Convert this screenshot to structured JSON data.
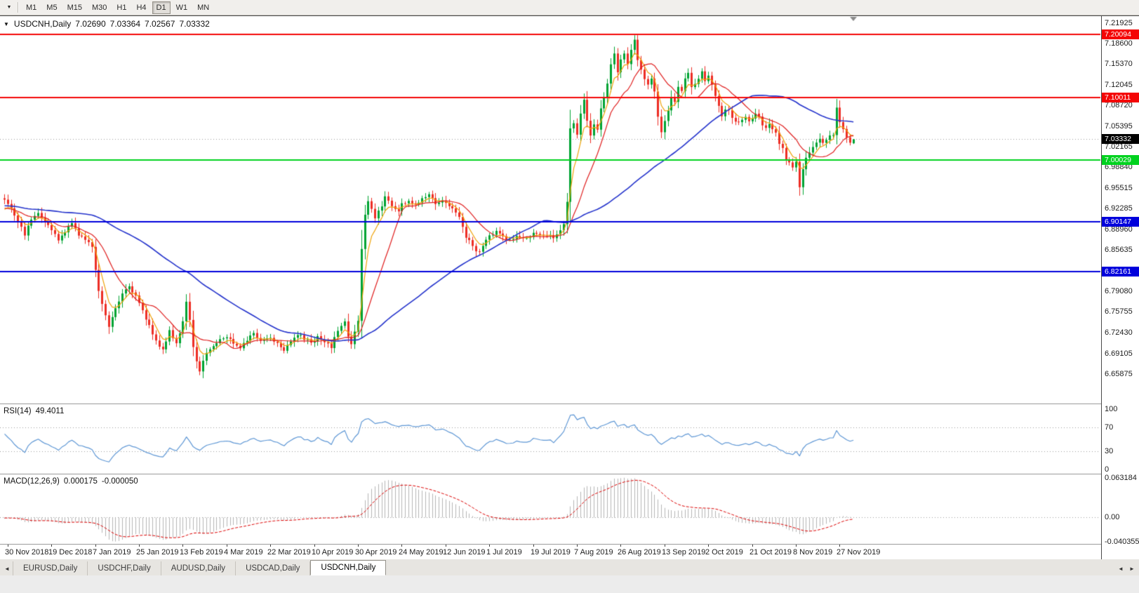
{
  "toolbar": {
    "timeframes": [
      "M1",
      "M5",
      "M15",
      "M30",
      "H1",
      "H4",
      "D1",
      "W1",
      "MN"
    ],
    "active": "D1"
  },
  "icons": {
    "dropdown": "▼",
    "title_triangle": "▼",
    "tab_left_arrow": "◄",
    "tab_right_arrow": "►"
  },
  "chart": {
    "symbol_period": "USDCNH,Daily",
    "ohlc": {
      "open": "7.02690",
      "high": "7.03364",
      "low": "7.02567",
      "close": "7.03332"
    },
    "price_axis": [
      "7.21925",
      "7.18600",
      "7.15370",
      "7.12045",
      "7.08720",
      "7.05395",
      "7.02165",
      "6.98840",
      "6.95515",
      "6.92285",
      "6.88960",
      "6.85635",
      "6.79080",
      "6.75755",
      "6.72430",
      "6.69105",
      "6.65875"
    ],
    "hlines": [
      {
        "price": 7.20094,
        "label": "7.20094",
        "color": "#f40606"
      },
      {
        "price": 7.10011,
        "label": "7.10011",
        "color": "#f40606"
      },
      {
        "price": 7.00029,
        "label": "7.00029",
        "color": "#00d21f"
      },
      {
        "price": 6.90147,
        "label": "6.90147",
        "color": "#0000dc"
      },
      {
        "price": 6.82161,
        "label": "6.82161",
        "color": "#0000dc"
      }
    ],
    "current_price": {
      "value": 7.03332,
      "label": "7.03332",
      "tag_color": "#000000"
    },
    "date_axis": [
      "30 Nov 2018",
      "19 Dec 2018",
      "7 Jan 2019",
      "25 Jan 2019",
      "13 Feb 2019",
      "4 Mar 2019",
      "22 Mar 2019",
      "10 Apr 2019",
      "30 Apr 2019",
      "24 May 2019",
      "12 Jun 2019",
      "1 Jul 2019",
      "19 Jul 2019",
      "7 Aug 2019",
      "26 Aug 2019",
      "13 Sep 2019",
      "2 Oct 2019",
      "21 Oct 2019",
      "8 Nov 2019",
      "27 Nov 2019"
    ]
  },
  "rsi": {
    "label": "RSI(14)",
    "value": "49.4011",
    "axis": [
      "100",
      "70",
      "30",
      "0"
    ],
    "levels": [
      70,
      30
    ]
  },
  "macd": {
    "label": "MACD(12,26,9)",
    "value_main": "0.000175",
    "value_signal": "-0.000050",
    "axis": [
      "0.063184",
      "0.00",
      "-0.040355"
    ]
  },
  "tabs": {
    "items": [
      "EURUSD,Daily",
      "USDCHF,Daily",
      "AUDUSD,Daily",
      "USDCAD,Daily",
      "USDCNH,Daily"
    ],
    "active": "USDCNH,Daily"
  },
  "colors": {
    "bull": "#00a332",
    "bear": "#ed2d24",
    "ma_fast": "#e01f1f",
    "ma_mid": "#f0a30a",
    "ma_slow": "#2433cc",
    "rsi_line": "#5e97d5",
    "level_dotted": "#9c9c9c",
    "macd_hist": "#b5b5b5",
    "macd_signal": "#dd0000",
    "current_line": "#9a9a9a",
    "shift_marker": "#8a8a8a"
  },
  "chart_data": {
    "type": "candlestick",
    "symbol": "USDCNH",
    "timeframe": "Daily",
    "bars": 253,
    "warmup_bars": 60,
    "bars_per_label": 13,
    "first_label_bar": 1,
    "price_range": [
      6.61,
      7.23
    ],
    "macd_range": [
      -0.0447,
      0.0687
    ],
    "last_close": 7.03332,
    "last_bar": [
      7.0269,
      7.03364,
      7.02567,
      7.03332
    ],
    "indicators": {
      "ma_periods": [
        13,
        5,
        55
      ],
      "rsi_period": 14,
      "macd_params": [
        12,
        26,
        9
      ]
    },
    "price_anchors": [
      [
        0,
        6.938
      ],
      [
        2,
        6.925
      ],
      [
        4,
        6.902
      ],
      [
        6,
        6.882
      ],
      [
        8,
        6.905
      ],
      [
        10,
        6.918
      ],
      [
        12,
        6.902
      ],
      [
        14,
        6.888
      ],
      [
        16,
        6.872
      ],
      [
        18,
        6.886
      ],
      [
        20,
        6.898
      ],
      [
        22,
        6.882
      ],
      [
        24,
        6.872
      ],
      [
        26,
        6.862
      ],
      [
        28,
        6.792
      ],
      [
        30,
        6.752
      ],
      [
        31,
        6.735
      ],
      [
        33,
        6.765
      ],
      [
        35,
        6.788
      ],
      [
        37,
        6.8
      ],
      [
        39,
        6.782
      ],
      [
        41,
        6.758
      ],
      [
        43,
        6.736
      ],
      [
        45,
        6.712
      ],
      [
        47,
        6.695
      ],
      [
        49,
        6.728
      ],
      [
        51,
        6.708
      ],
      [
        53,
        6.742
      ],
      [
        54,
        6.772
      ],
      [
        55,
        6.742
      ],
      [
        56,
        6.7
      ],
      [
        57,
        6.678
      ],
      [
        58,
        6.665
      ],
      [
        60,
        6.692
      ],
      [
        62,
        6.705
      ],
      [
        64,
        6.713
      ],
      [
        66,
        6.718
      ],
      [
        68,
        6.708
      ],
      [
        70,
        6.702
      ],
      [
        72,
        6.714
      ],
      [
        74,
        6.722
      ],
      [
        76,
        6.712
      ],
      [
        79,
        6.717
      ],
      [
        81,
        6.708
      ],
      [
        83,
        6.698
      ],
      [
        85,
        6.712
      ],
      [
        87,
        6.722
      ],
      [
        89,
        6.714
      ],
      [
        91,
        6.709
      ],
      [
        93,
        6.717
      ],
      [
        95,
        6.708
      ],
      [
        97,
        6.702
      ],
      [
        99,
        6.728
      ],
      [
        101,
        6.742
      ],
      [
        102,
        6.718
      ],
      [
        103,
        6.708
      ],
      [
        104,
        6.725
      ],
      [
        105,
        6.742
      ],
      [
        106,
        6.858
      ],
      [
        107,
        6.912
      ],
      [
        108,
        6.935
      ],
      [
        109,
        6.92
      ],
      [
        110,
        6.908
      ],
      [
        112,
        6.928
      ],
      [
        113,
        6.942
      ],
      [
        115,
        6.928
      ],
      [
        117,
        6.918
      ],
      [
        118,
        6.93
      ],
      [
        120,
        6.935
      ],
      [
        122,
        6.927
      ],
      [
        124,
        6.94
      ],
      [
        126,
        6.947
      ],
      [
        128,
        6.932
      ],
      [
        130,
        6.937
      ],
      [
        131,
        6.93
      ],
      [
        133,
        6.925
      ],
      [
        135,
        6.908
      ],
      [
        137,
        6.878
      ],
      [
        139,
        6.862
      ],
      [
        141,
        6.852
      ],
      [
        143,
        6.872
      ],
      [
        144,
        6.878
      ],
      [
        146,
        6.885
      ],
      [
        148,
        6.878
      ],
      [
        150,
        6.872
      ],
      [
        152,
        6.878
      ],
      [
        154,
        6.874
      ],
      [
        156,
        6.878
      ],
      [
        157,
        6.882
      ],
      [
        159,
        6.878
      ],
      [
        161,
        6.882
      ],
      [
        163,
        6.878
      ],
      [
        165,
        6.888
      ],
      [
        166,
        6.896
      ],
      [
        167,
        6.932
      ],
      [
        168,
        7.048
      ],
      [
        169,
        7.058
      ],
      [
        170,
        7.042
      ],
      [
        171,
        7.072
      ],
      [
        172,
        7.098
      ],
      [
        173,
        7.062
      ],
      [
        174,
        7.038
      ],
      [
        175,
        7.058
      ],
      [
        176,
        7.048
      ],
      [
        177,
        7.082
      ],
      [
        178,
        7.098
      ],
      [
        179,
        7.122
      ],
      [
        180,
        7.152
      ],
      [
        181,
        7.168
      ],
      [
        182,
        7.142
      ],
      [
        183,
        7.162
      ],
      [
        184,
        7.172
      ],
      [
        185,
        7.152
      ],
      [
        186,
        7.178
      ],
      [
        187,
        7.192
      ],
      [
        188,
        7.162
      ],
      [
        189,
        7.142
      ],
      [
        190,
        7.128
      ],
      [
        191,
        7.118
      ],
      [
        192,
        7.132
      ],
      [
        193,
        7.108
      ],
      [
        194,
        7.072
      ],
      [
        195,
        7.042
      ],
      [
        196,
        7.062
      ],
      [
        197,
        7.078
      ],
      [
        198,
        7.098
      ],
      [
        199,
        7.092
      ],
      [
        200,
        7.118
      ],
      [
        201,
        7.112
      ],
      [
        202,
        7.128
      ],
      [
        203,
        7.138
      ],
      [
        204,
        7.118
      ],
      [
        205,
        7.122
      ],
      [
        206,
        7.132
      ],
      [
        207,
        7.142
      ],
      [
        208,
        7.128
      ],
      [
        209,
        7.134
      ],
      [
        210,
        7.122
      ],
      [
        211,
        7.102
      ],
      [
        212,
        7.088
      ],
      [
        213,
        7.072
      ],
      [
        214,
        7.082
      ],
      [
        215,
        7.078
      ],
      [
        216,
        7.068
      ],
      [
        217,
        7.062
      ],
      [
        218,
        7.058
      ],
      [
        219,
        7.062
      ],
      [
        220,
        7.068
      ],
      [
        221,
        7.062
      ],
      [
        222,
        7.066
      ],
      [
        223,
        7.072
      ],
      [
        224,
        7.068
      ],
      [
        225,
        7.058
      ],
      [
        226,
        7.052
      ],
      [
        227,
        7.058
      ],
      [
        228,
        7.052
      ],
      [
        229,
        7.042
      ],
      [
        230,
        7.028
      ],
      [
        231,
        7.018
      ],
      [
        232,
        7.002
      ],
      [
        233,
        6.996
      ],
      [
        234,
        6.988
      ],
      [
        235,
        6.998
      ],
      [
        236,
        6.956
      ],
      [
        237,
        6.985
      ],
      [
        238,
        7.002
      ],
      [
        239,
        7.012
      ],
      [
        240,
        7.022
      ],
      [
        241,
        7.028
      ],
      [
        242,
        7.035
      ],
      [
        243,
        7.028
      ],
      [
        244,
        7.032
      ],
      [
        245,
        7.038
      ],
      [
        246,
        7.042
      ],
      [
        247,
        7.082
      ],
      [
        248,
        7.062
      ],
      [
        249,
        7.048
      ],
      [
        250,
        7.038
      ],
      [
        251,
        7.03
      ],
      [
        252,
        7.03332
      ]
    ]
  }
}
